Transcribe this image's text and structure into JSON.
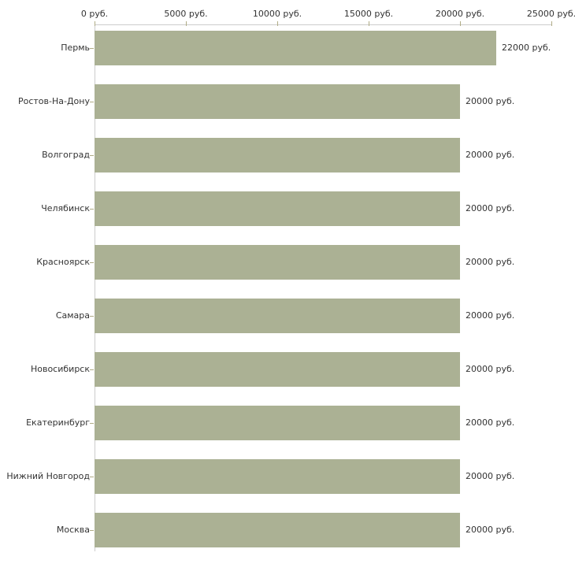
{
  "chart_data": {
    "type": "bar",
    "orientation": "horizontal",
    "title": "",
    "xlabel": "",
    "ylabel": "",
    "categories": [
      "Пермь",
      "Ростов-На-Дону",
      "Волгоград",
      "Челябинск",
      "Красноярск",
      "Самара",
      "Новосибирск",
      "Екатеринбург",
      "Нижний Новгород",
      "Москва"
    ],
    "values": [
      22000,
      20000,
      20000,
      20000,
      20000,
      20000,
      20000,
      20000,
      20000,
      20000
    ],
    "value_labels": [
      "22000 руб.",
      "20000 руб.",
      "20000 руб.",
      "20000 руб.",
      "20000 руб.",
      "20000 руб.",
      "20000 руб.",
      "20000 руб.",
      "20000 руб.",
      "20000 руб."
    ],
    "xlim": [
      0,
      25000
    ],
    "x_ticks": [
      0,
      5000,
      10000,
      15000,
      20000,
      25000
    ],
    "x_tick_labels": [
      "0 руб.",
      "5000 руб.",
      "10000 руб.",
      "15000 руб.",
      "20000 руб.",
      "25000 руб."
    ],
    "axis_position": "top",
    "grid": false,
    "legend": false,
    "colors": {
      "bar": "#abb194",
      "axis_line": "#cccccc",
      "tick_mark": "#b0ac86",
      "text": "#333333",
      "background": "#ffffff"
    }
  }
}
